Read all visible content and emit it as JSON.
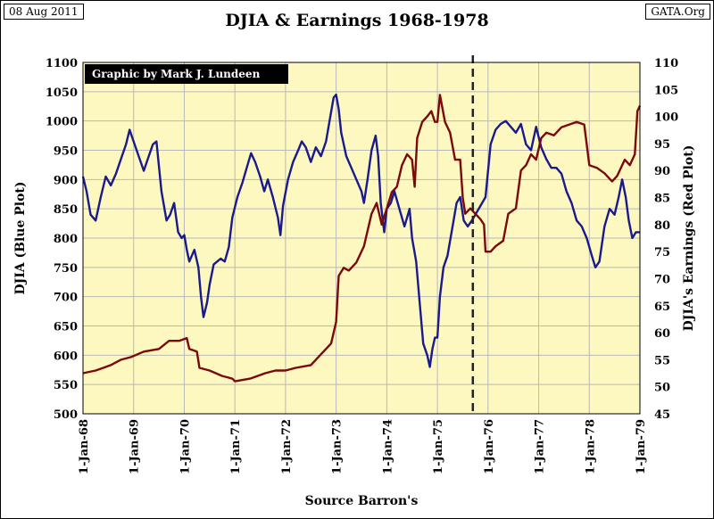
{
  "header": {
    "date": "08 Aug 2011",
    "source": "GATA.Org",
    "title": "DJIA & Earnings 1968-1978"
  },
  "colors": {
    "plot_background": "#fdf8c0",
    "grid": "#b8b8b8",
    "djia_line": "#1a1a8c",
    "earnings_line": "#7a0a0a",
    "marker": "#222222"
  },
  "chart_data": {
    "type": "line",
    "title": "DJIA & Earnings 1968-1978",
    "credit": "Graphic by Mark J. Lundeen",
    "xlabel": "Source Barron's",
    "ylabel_left": "DJIA (Blue Plot)",
    "ylabel_right": "DJIA's Earnings (Red Plot)",
    "xlim": [
      1968,
      1979
    ],
    "x_ticks": [
      {
        "value": 1968,
        "label": "1-Jan-68"
      },
      {
        "value": 1969,
        "label": "1-Jan-69"
      },
      {
        "value": 1970,
        "label": "1-Jan-70"
      },
      {
        "value": 1971,
        "label": "1-Jan-71"
      },
      {
        "value": 1972,
        "label": "1-Jan-72"
      },
      {
        "value": 1973,
        "label": "1-Jan-73"
      },
      {
        "value": 1974,
        "label": "1-Jan-74"
      },
      {
        "value": 1975,
        "label": "1-Jan-75"
      },
      {
        "value": 1976,
        "label": "1-Jan-76"
      },
      {
        "value": 1977,
        "label": "1-Jan-77"
      },
      {
        "value": 1978,
        "label": "1-Jan-78"
      },
      {
        "value": 1979,
        "label": "1-Jan-79"
      }
    ],
    "y_left": {
      "lim": [
        500,
        1100
      ],
      "ticks": [
        "500",
        "550",
        "600",
        "650",
        "700",
        "750",
        "800",
        "850",
        "900",
        "950",
        "1000",
        "1050",
        "1100"
      ]
    },
    "y_right": {
      "lim": [
        45,
        110
      ],
      "ticks": [
        "45",
        "50",
        "55",
        "60",
        "65",
        "70",
        "75",
        "80",
        "85",
        "90",
        "95",
        "100",
        "105",
        "110"
      ]
    },
    "marker_line_x": 1975.7,
    "grid": true,
    "series": [
      {
        "name": "DJIA",
        "axis": "left",
        "points": [
          [
            1968.0,
            905
          ],
          [
            1968.07,
            880
          ],
          [
            1968.15,
            840
          ],
          [
            1968.25,
            830
          ],
          [
            1968.35,
            870
          ],
          [
            1968.45,
            905
          ],
          [
            1968.55,
            890
          ],
          [
            1968.65,
            910
          ],
          [
            1968.75,
            935
          ],
          [
            1968.85,
            960
          ],
          [
            1968.92,
            985
          ],
          [
            1969.0,
            965
          ],
          [
            1969.1,
            940
          ],
          [
            1969.2,
            915
          ],
          [
            1969.3,
            940
          ],
          [
            1969.38,
            960
          ],
          [
            1969.45,
            965
          ],
          [
            1969.55,
            880
          ],
          [
            1969.65,
            830
          ],
          [
            1969.72,
            840
          ],
          [
            1969.8,
            860
          ],
          [
            1969.88,
            810
          ],
          [
            1969.95,
            800
          ],
          [
            1970.0,
            805
          ],
          [
            1970.05,
            780
          ],
          [
            1970.1,
            760
          ],
          [
            1970.2,
            780
          ],
          [
            1970.28,
            750
          ],
          [
            1970.33,
            700
          ],
          [
            1970.38,
            665
          ],
          [
            1970.45,
            690
          ],
          [
            1970.5,
            720
          ],
          [
            1970.58,
            755
          ],
          [
            1970.65,
            760
          ],
          [
            1970.72,
            765
          ],
          [
            1970.8,
            760
          ],
          [
            1970.88,
            785
          ],
          [
            1970.95,
            835
          ],
          [
            1971.05,
            870
          ],
          [
            1971.15,
            895
          ],
          [
            1971.25,
            925
          ],
          [
            1971.32,
            945
          ],
          [
            1971.4,
            930
          ],
          [
            1971.5,
            905
          ],
          [
            1971.58,
            880
          ],
          [
            1971.65,
            900
          ],
          [
            1971.75,
            870
          ],
          [
            1971.85,
            835
          ],
          [
            1971.9,
            805
          ],
          [
            1971.95,
            855
          ],
          [
            1972.05,
            900
          ],
          [
            1972.15,
            930
          ],
          [
            1972.25,
            950
          ],
          [
            1972.32,
            965
          ],
          [
            1972.4,
            955
          ],
          [
            1972.5,
            930
          ],
          [
            1972.6,
            955
          ],
          [
            1972.7,
            940
          ],
          [
            1972.8,
            965
          ],
          [
            1972.88,
            1005
          ],
          [
            1972.95,
            1040
          ],
          [
            1973.0,
            1045
          ],
          [
            1973.05,
            1020
          ],
          [
            1973.1,
            980
          ],
          [
            1973.2,
            940
          ],
          [
            1973.3,
            920
          ],
          [
            1973.4,
            900
          ],
          [
            1973.5,
            880
          ],
          [
            1973.55,
            860
          ],
          [
            1973.62,
            900
          ],
          [
            1973.7,
            950
          ],
          [
            1973.78,
            975
          ],
          [
            1973.83,
            940
          ],
          [
            1973.88,
            860
          ],
          [
            1973.95,
            810
          ],
          [
            1974.0,
            850
          ],
          [
            1974.08,
            860
          ],
          [
            1974.15,
            880
          ],
          [
            1974.25,
            850
          ],
          [
            1974.35,
            820
          ],
          [
            1974.45,
            850
          ],
          [
            1974.5,
            800
          ],
          [
            1974.58,
            760
          ],
          [
            1974.65,
            690
          ],
          [
            1974.72,
            620
          ],
          [
            1974.8,
            600
          ],
          [
            1974.85,
            580
          ],
          [
            1974.9,
            610
          ],
          [
            1974.95,
            630
          ],
          [
            1975.0,
            630
          ],
          [
            1975.05,
            700
          ],
          [
            1975.12,
            750
          ],
          [
            1975.2,
            770
          ],
          [
            1975.3,
            820
          ],
          [
            1975.38,
            860
          ],
          [
            1975.45,
            870
          ],
          [
            1975.52,
            830
          ],
          [
            1975.6,
            820
          ],
          [
            1975.68,
            830
          ],
          [
            1975.75,
            840
          ],
          [
            1975.85,
            855
          ],
          [
            1975.95,
            870
          ],
          [
            1976.05,
            960
          ],
          [
            1976.15,
            985
          ],
          [
            1976.25,
            995
          ],
          [
            1976.35,
            1000
          ],
          [
            1976.45,
            990
          ],
          [
            1976.55,
            980
          ],
          [
            1976.65,
            995
          ],
          [
            1976.75,
            960
          ],
          [
            1976.85,
            950
          ],
          [
            1976.95,
            990
          ],
          [
            1977.05,
            955
          ],
          [
            1977.15,
            935
          ],
          [
            1977.25,
            920
          ],
          [
            1977.35,
            920
          ],
          [
            1977.45,
            910
          ],
          [
            1977.55,
            880
          ],
          [
            1977.65,
            860
          ],
          [
            1977.75,
            830
          ],
          [
            1977.85,
            820
          ],
          [
            1977.95,
            800
          ],
          [
            1978.05,
            770
          ],
          [
            1978.12,
            750
          ],
          [
            1978.2,
            760
          ],
          [
            1978.3,
            820
          ],
          [
            1978.4,
            850
          ],
          [
            1978.5,
            840
          ],
          [
            1978.58,
            870
          ],
          [
            1978.65,
            900
          ],
          [
            1978.72,
            870
          ],
          [
            1978.78,
            830
          ],
          [
            1978.85,
            800
          ],
          [
            1978.92,
            810
          ],
          [
            1979.0,
            810
          ]
        ]
      },
      {
        "name": "DJIA Earnings",
        "axis": "right",
        "points": [
          [
            1968.0,
            52.5
          ],
          [
            1968.25,
            53.0
          ],
          [
            1968.4,
            53.5
          ],
          [
            1968.55,
            54.0
          ],
          [
            1968.75,
            55.0
          ],
          [
            1968.95,
            55.5
          ],
          [
            1969.2,
            56.5
          ],
          [
            1969.5,
            57.0
          ],
          [
            1969.7,
            58.5
          ],
          [
            1969.9,
            58.5
          ],
          [
            1970.05,
            59.0
          ],
          [
            1970.1,
            57.0
          ],
          [
            1970.25,
            56.5
          ],
          [
            1970.3,
            53.5
          ],
          [
            1970.5,
            53.0
          ],
          [
            1970.75,
            52.0
          ],
          [
            1970.95,
            51.5
          ],
          [
            1971.0,
            51.0
          ],
          [
            1971.3,
            51.5
          ],
          [
            1971.6,
            52.5
          ],
          [
            1971.8,
            53.0
          ],
          [
            1972.0,
            53.0
          ],
          [
            1972.2,
            53.5
          ],
          [
            1972.5,
            54.0
          ],
          [
            1972.7,
            56.0
          ],
          [
            1972.9,
            58.0
          ],
          [
            1973.0,
            62.0
          ],
          [
            1973.05,
            70.5
          ],
          [
            1973.15,
            72.0
          ],
          [
            1973.25,
            71.5
          ],
          [
            1973.4,
            73.0
          ],
          [
            1973.55,
            76.0
          ],
          [
            1973.7,
            82.0
          ],
          [
            1973.8,
            84.0
          ],
          [
            1973.9,
            80.0
          ],
          [
            1974.0,
            83.0
          ],
          [
            1974.1,
            86.0
          ],
          [
            1974.2,
            87.0
          ],
          [
            1974.3,
            91.0
          ],
          [
            1974.4,
            93.0
          ],
          [
            1974.5,
            92.0
          ],
          [
            1974.55,
            87.0
          ],
          [
            1974.6,
            96.0
          ],
          [
            1974.7,
            99.0
          ],
          [
            1974.8,
            100.0
          ],
          [
            1974.88,
            101.0
          ],
          [
            1974.95,
            99.0
          ],
          [
            1975.0,
            99.0
          ],
          [
            1975.05,
            104.0
          ],
          [
            1975.15,
            99.0
          ],
          [
            1975.25,
            97.0
          ],
          [
            1975.35,
            92.0
          ],
          [
            1975.45,
            92.0
          ],
          [
            1975.5,
            85.0
          ],
          [
            1975.55,
            82.0
          ],
          [
            1975.65,
            83.0
          ],
          [
            1975.75,
            82.0
          ],
          [
            1975.85,
            81.0
          ],
          [
            1975.92,
            80.0
          ],
          [
            1975.95,
            75.0
          ],
          [
            1976.05,
            75.0
          ],
          [
            1976.15,
            76.0
          ],
          [
            1976.3,
            77.0
          ],
          [
            1976.4,
            82.0
          ],
          [
            1976.55,
            83.0
          ],
          [
            1976.65,
            90.0
          ],
          [
            1976.75,
            91.0
          ],
          [
            1976.85,
            93.0
          ],
          [
            1976.95,
            92.0
          ],
          [
            1977.05,
            96.0
          ],
          [
            1977.15,
            97.0
          ],
          [
            1977.3,
            96.5
          ],
          [
            1977.45,
            98.0
          ],
          [
            1977.6,
            98.5
          ],
          [
            1977.75,
            99.0
          ],
          [
            1977.9,
            98.5
          ],
          [
            1978.0,
            91.0
          ],
          [
            1978.15,
            90.5
          ],
          [
            1978.3,
            89.5
          ],
          [
            1978.45,
            88.0
          ],
          [
            1978.55,
            89.0
          ],
          [
            1978.7,
            92.0
          ],
          [
            1978.8,
            91.0
          ],
          [
            1978.9,
            93.0
          ],
          [
            1978.95,
            101.0
          ],
          [
            1979.0,
            102.0
          ]
        ]
      }
    ]
  }
}
